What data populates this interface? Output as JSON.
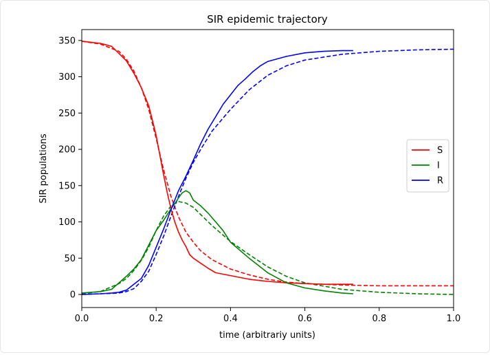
{
  "chart_data": {
    "type": "line",
    "title": "SIR epidemic trajectory",
    "xlabel": "time (arbitrariy units)",
    "ylabel": "SIR populations",
    "xlim": [
      0.0,
      1.0
    ],
    "ylim": [
      -18,
      365
    ],
    "xticks": [
      "0.0",
      "0.2",
      "0.4",
      "0.6",
      "0.8",
      "1.0"
    ],
    "xtick_values": [
      0.0,
      0.2,
      0.4,
      0.6,
      0.8,
      1.0
    ],
    "yticks": [
      "0",
      "50",
      "100",
      "150",
      "200",
      "250",
      "300",
      "350"
    ],
    "ytick_values": [
      0,
      50,
      100,
      150,
      200,
      250,
      300,
      350
    ],
    "grid": false,
    "legend_position": "center-right",
    "series": [
      {
        "name": "S",
        "color": "#ff0000",
        "style": "solid",
        "x": [
          0.0,
          0.05,
          0.08,
          0.1,
          0.12,
          0.14,
          0.16,
          0.18,
          0.19,
          0.2,
          0.21,
          0.22,
          0.23,
          0.24,
          0.25,
          0.26,
          0.27,
          0.28,
          0.29,
          0.3,
          0.32,
          0.34,
          0.36,
          0.4,
          0.45,
          0.5,
          0.55,
          0.6,
          0.65,
          0.7,
          0.73
        ],
        "y": [
          349,
          346,
          342,
          332,
          322,
          305,
          285,
          260,
          240,
          219,
          192,
          165,
          140,
          118,
          100,
          86,
          75,
          66,
          55,
          50,
          43,
          36,
          30,
          26,
          21,
          18,
          16,
          15,
          14,
          14,
          14
        ]
      },
      {
        "name": "I",
        "color": "#008000",
        "style": "solid",
        "x": [
          0.0,
          0.05,
          0.08,
          0.1,
          0.12,
          0.14,
          0.16,
          0.18,
          0.2,
          0.22,
          0.24,
          0.25,
          0.26,
          0.27,
          0.28,
          0.29,
          0.3,
          0.32,
          0.34,
          0.36,
          0.38,
          0.4,
          0.45,
          0.5,
          0.55,
          0.6,
          0.65,
          0.7,
          0.73
        ],
        "y": [
          2,
          4,
          7,
          16,
          25,
          35,
          48,
          68,
          88,
          102,
          118,
          125,
          133,
          140,
          143,
          140,
          130,
          122,
          112,
          100,
          88,
          72,
          50,
          30,
          16,
          9,
          5,
          2,
          1
        ]
      },
      {
        "name": "R",
        "color": "#0000ff",
        "style": "solid",
        "x": [
          0.0,
          0.05,
          0.08,
          0.1,
          0.12,
          0.14,
          0.16,
          0.18,
          0.2,
          0.22,
          0.24,
          0.26,
          0.28,
          0.3,
          0.32,
          0.34,
          0.36,
          0.38,
          0.4,
          0.42,
          0.44,
          0.46,
          0.48,
          0.5,
          0.55,
          0.6,
          0.65,
          0.7,
          0.73
        ],
        "y": [
          0,
          1,
          2,
          3,
          6,
          14,
          22,
          40,
          65,
          90,
          117,
          143,
          163,
          185,
          208,
          228,
          245,
          262,
          275,
          288,
          297,
          307,
          315,
          321,
          328,
          333,
          335,
          336,
          336
        ]
      }
    ],
    "fitted_series": [
      {
        "name": "S",
        "color": "#ff0000",
        "style": "dashed",
        "x": [
          0.0,
          0.05,
          0.1,
          0.12,
          0.14,
          0.16,
          0.18,
          0.2,
          0.22,
          0.24,
          0.26,
          0.28,
          0.3,
          0.32,
          0.35,
          0.4,
          0.45,
          0.5,
          0.55,
          0.6,
          0.7,
          0.8,
          0.9,
          1.0
        ],
        "y": [
          349,
          345,
          335,
          324,
          308,
          285,
          255,
          215,
          172,
          135,
          107,
          86,
          72,
          60,
          48,
          35,
          27,
          21,
          17,
          15,
          13,
          12,
          12,
          12
        ]
      },
      {
        "name": "I",
        "color": "#008000",
        "style": "dashed",
        "x": [
          0.0,
          0.05,
          0.1,
          0.12,
          0.14,
          0.16,
          0.18,
          0.2,
          0.22,
          0.24,
          0.26,
          0.28,
          0.3,
          0.32,
          0.35,
          0.4,
          0.45,
          0.5,
          0.55,
          0.6,
          0.7,
          0.8,
          0.9,
          1.0
        ],
        "y": [
          1,
          4,
          15,
          22,
          33,
          47,
          65,
          88,
          108,
          122,
          128,
          126,
          120,
          110,
          95,
          73,
          55,
          38,
          25,
          16,
          7,
          3,
          1,
          0
        ]
      },
      {
        "name": "R",
        "color": "#0000ff",
        "style": "dashed",
        "x": [
          0.0,
          0.05,
          0.1,
          0.12,
          0.14,
          0.16,
          0.18,
          0.2,
          0.22,
          0.24,
          0.26,
          0.28,
          0.3,
          0.32,
          0.35,
          0.4,
          0.45,
          0.5,
          0.55,
          0.6,
          0.7,
          0.8,
          0.9,
          1.0
        ],
        "y": [
          0,
          1,
          2,
          4,
          8,
          18,
          32,
          55,
          80,
          108,
          135,
          160,
          182,
          200,
          225,
          255,
          282,
          302,
          315,
          323,
          331,
          335,
          337,
          338
        ]
      }
    ]
  }
}
